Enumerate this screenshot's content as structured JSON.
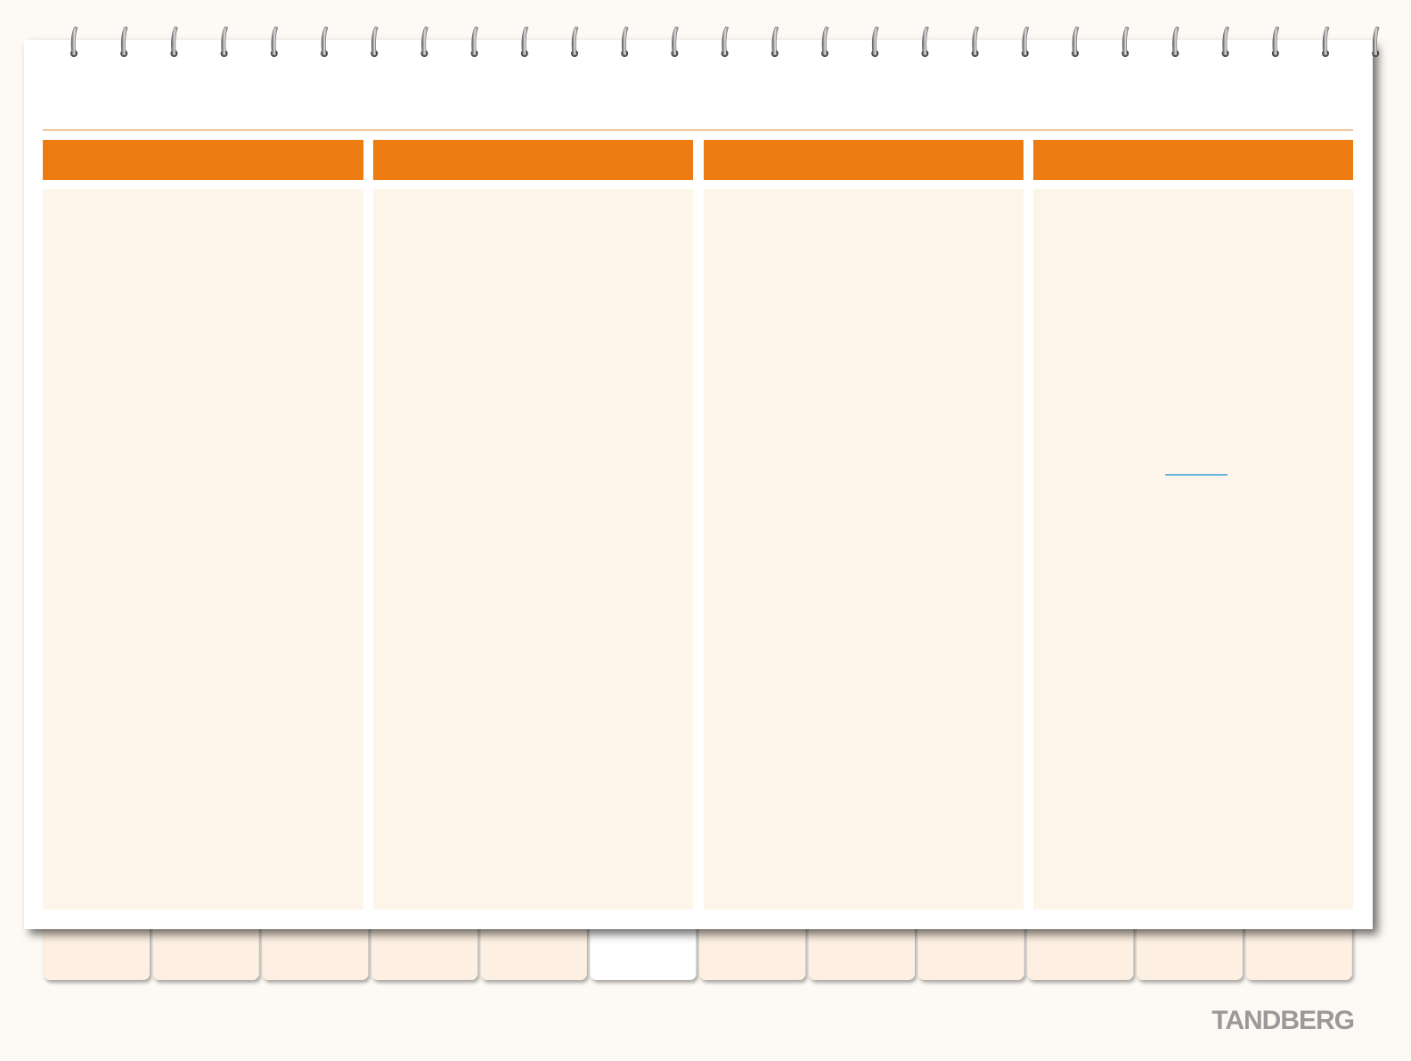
{
  "logo": "TANDBERG"
}
